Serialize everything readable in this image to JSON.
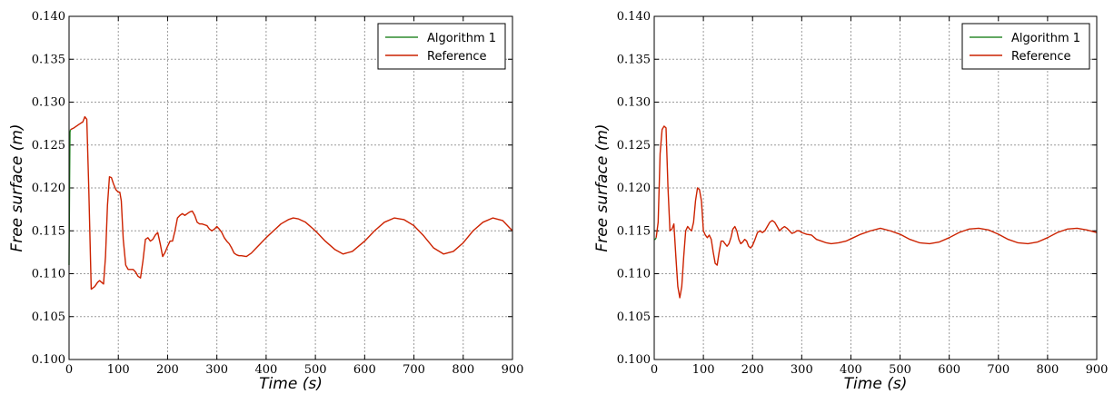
{
  "chart_data": [
    {
      "type": "line",
      "xlabel": "Time (s)",
      "ylabel": "Free surface (m)",
      "xlim": [
        0,
        900
      ],
      "ylim": [
        0.1,
        0.14
      ],
      "xticks": [
        "0",
        "100",
        "200",
        "300",
        "400",
        "500",
        "600",
        "700",
        "800",
        "900"
      ],
      "yticks": [
        "0.100",
        "0.105",
        "0.110",
        "0.115",
        "0.120",
        "0.125",
        "0.130",
        "0.135",
        "0.140"
      ],
      "grid": true,
      "legend": "top-right",
      "series": [
        {
          "name": "Algorithm 1",
          "color": "#2e8b2e",
          "x": [
            0,
            1,
            2,
            3
          ],
          "y": [
            0.111,
            0.12,
            0.1265,
            0.1268
          ]
        },
        {
          "name": "Reference",
          "color": "#cc2200",
          "x": [
            3,
            10,
            20,
            28,
            32,
            36,
            40,
            45,
            52,
            58,
            62,
            66,
            70,
            74,
            78,
            82,
            86,
            90,
            95,
            100,
            103,
            106,
            110,
            115,
            120,
            125,
            130,
            135,
            140,
            145,
            150,
            155,
            160,
            165,
            170,
            175,
            180,
            185,
            190,
            195,
            200,
            205,
            210,
            215,
            220,
            225,
            230,
            235,
            240,
            245,
            250,
            255,
            260,
            265,
            270,
            275,
            280,
            285,
            290,
            295,
            300,
            305,
            310,
            315,
            320,
            325,
            330,
            335,
            340,
            345,
            350,
            360,
            370,
            380,
            390,
            400,
            415,
            430,
            445,
            455,
            465,
            480,
            500,
            520,
            540,
            556,
            575,
            600,
            620,
            640,
            660,
            680,
            700,
            720,
            740,
            760,
            780,
            800,
            820,
            840,
            860,
            880,
            900
          ],
          "y": [
            0.1268,
            0.127,
            0.1274,
            0.1277,
            0.1283,
            0.128,
            0.12,
            0.1082,
            0.1085,
            0.109,
            0.1092,
            0.109,
            0.1088,
            0.112,
            0.118,
            0.1213,
            0.1212,
            0.1205,
            0.1198,
            0.1195,
            0.1195,
            0.1185,
            0.114,
            0.111,
            0.1105,
            0.1105,
            0.1105,
            0.1102,
            0.1097,
            0.1095,
            0.1115,
            0.114,
            0.1142,
            0.1138,
            0.114,
            0.1145,
            0.1148,
            0.1135,
            0.112,
            0.1125,
            0.1132,
            0.1138,
            0.1138,
            0.115,
            0.1165,
            0.1168,
            0.117,
            0.1168,
            0.117,
            0.1172,
            0.1173,
            0.1168,
            0.116,
            0.1158,
            0.1158,
            0.1157,
            0.1156,
            0.1152,
            0.115,
            0.1152,
            0.1155,
            0.1152,
            0.1148,
            0.1142,
            0.1138,
            0.1135,
            0.113,
            0.1124,
            0.1122,
            0.1121,
            0.1121,
            0.112,
            0.1124,
            0.113,
            0.1136,
            0.1142,
            0.115,
            0.1158,
            0.1163,
            0.1165,
            0.1164,
            0.116,
            0.115,
            0.1138,
            0.1128,
            0.1123,
            0.1126,
            0.1138,
            0.115,
            0.116,
            0.1165,
            0.1163,
            0.1156,
            0.1144,
            0.113,
            0.1123,
            0.1126,
            0.1136,
            0.115,
            0.116,
            0.1165,
            0.1162,
            0.115
          ]
        }
      ]
    },
    {
      "type": "line",
      "xlabel": "Time (s)",
      "ylabel": "Free surface (m)",
      "xlim": [
        0,
        900
      ],
      "ylim": [
        0.1,
        0.14
      ],
      "xticks": [
        "0",
        "100",
        "200",
        "300",
        "400",
        "500",
        "600",
        "700",
        "800",
        "900"
      ],
      "yticks": [
        "0.100",
        "0.105",
        "0.110",
        "0.115",
        "0.120",
        "0.125",
        "0.130",
        "0.135",
        "0.140"
      ],
      "grid": true,
      "legend": "top-right",
      "series": [
        {
          "name": "Algorithm 1",
          "color": "#2e8b2e",
          "x": [
            0,
            2,
            4
          ],
          "y": [
            0.114,
            0.114,
            0.1142
          ]
        },
        {
          "name": "Reference",
          "color": "#cc2200",
          "x": [
            4,
            8,
            12,
            16,
            20,
            24,
            28,
            32,
            36,
            40,
            44,
            48,
            52,
            56,
            60,
            64,
            68,
            72,
            76,
            80,
            84,
            88,
            92,
            96,
            100,
            104,
            108,
            112,
            116,
            120,
            124,
            128,
            132,
            136,
            140,
            144,
            148,
            152,
            156,
            160,
            164,
            168,
            172,
            176,
            180,
            184,
            188,
            192,
            196,
            200,
            205,
            210,
            215,
            220,
            225,
            230,
            235,
            240,
            245,
            250,
            255,
            260,
            265,
            270,
            275,
            280,
            285,
            290,
            295,
            300,
            310,
            320,
            330,
            340,
            350,
            360,
            375,
            390,
            405,
            420,
            440,
            460,
            480,
            500,
            520,
            540,
            560,
            580,
            600,
            620,
            640,
            660,
            680,
            700,
            720,
            740,
            760,
            780,
            800,
            820,
            840,
            860,
            880,
            900
          ],
          "y": [
            0.1142,
            0.116,
            0.124,
            0.1268,
            0.1272,
            0.127,
            0.12,
            0.115,
            0.1152,
            0.1158,
            0.112,
            0.1085,
            0.1072,
            0.1085,
            0.112,
            0.115,
            0.1155,
            0.1152,
            0.115,
            0.116,
            0.1185,
            0.12,
            0.1198,
            0.1185,
            0.115,
            0.1145,
            0.1142,
            0.1145,
            0.114,
            0.1125,
            0.1112,
            0.111,
            0.1125,
            0.1138,
            0.1138,
            0.1135,
            0.1132,
            0.1135,
            0.1142,
            0.1152,
            0.1155,
            0.115,
            0.114,
            0.1135,
            0.1137,
            0.114,
            0.1138,
            0.1132,
            0.113,
            0.1133,
            0.114,
            0.1148,
            0.115,
            0.1148,
            0.115,
            0.1155,
            0.116,
            0.1162,
            0.116,
            0.1155,
            0.115,
            0.1153,
            0.1155,
            0.1153,
            0.115,
            0.1147,
            0.1148,
            0.115,
            0.115,
            0.1148,
            0.1146,
            0.1145,
            0.114,
            0.1138,
            0.1136,
            0.1135,
            0.1136,
            0.1138,
            0.1142,
            0.1146,
            0.115,
            0.1153,
            0.115,
            0.1146,
            0.114,
            0.1136,
            0.1135,
            0.1137,
            0.1142,
            0.1148,
            0.1152,
            0.1153,
            0.1151,
            0.1146,
            0.114,
            0.1136,
            0.1135,
            0.1137,
            0.1142,
            0.1148,
            0.1152,
            0.1153,
            0.1151,
            0.1148
          ]
        }
      ]
    }
  ]
}
